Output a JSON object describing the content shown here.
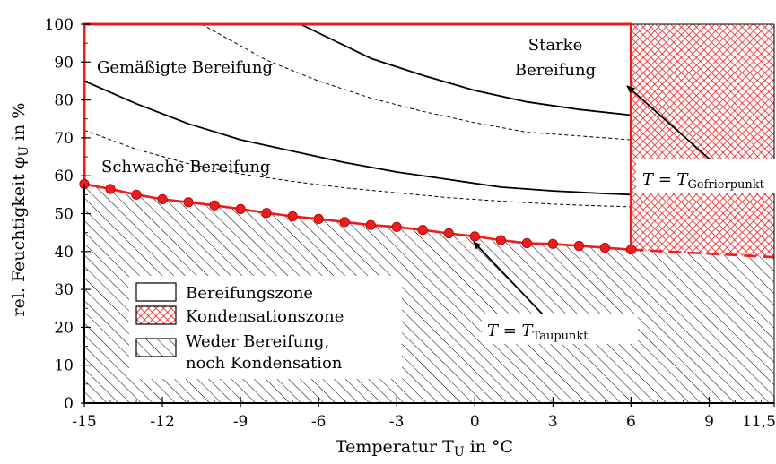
{
  "chart_data": {
    "type": "line",
    "xlabel": "Temperatur T",
    "xlabel_sub": "U",
    "xlabel_unit": " in °C",
    "ylabel": "rel. Feuchtigkeit φ",
    "ylabel_sub": "U",
    "ylabel_unit": " in %",
    "xlim": [
      -15,
      11.5
    ],
    "ylim": [
      0,
      100
    ],
    "xticks": [
      -15,
      -12,
      -9,
      -6,
      -3,
      0,
      3,
      6,
      9,
      11.5
    ],
    "xtick_labels": [
      "-15",
      "-12",
      "-9",
      "-6",
      "-3",
      "0",
      "3",
      "6",
      "9",
      "11,5"
    ],
    "yticks": [
      0,
      10,
      20,
      30,
      40,
      50,
      60,
      70,
      80,
      90,
      100
    ],
    "ytick_labels": [
      "0",
      "10",
      "20",
      "30",
      "40",
      "50",
      "60",
      "70",
      "80",
      "90",
      "100"
    ],
    "dewpoint_points": {
      "x": [
        -15,
        -14,
        -13,
        -12,
        -11,
        -10,
        -9,
        -8,
        -7,
        -6,
        -5,
        -4,
        -3,
        -2,
        -1,
        0,
        1,
        2,
        3,
        4,
        5,
        6
      ],
      "y": [
        57.8,
        56.5,
        55.0,
        53.8,
        53.0,
        52.2,
        51.2,
        50.2,
        49.3,
        48.6,
        47.8,
        47.0,
        46.5,
        45.7,
        44.8,
        44.0,
        43.0,
        42.2,
        42.0,
        41.5,
        41.0,
        40.5
      ]
    },
    "dewpoint_extension": {
      "x": [
        6,
        11.5
      ],
      "y": [
        40.5,
        38.5
      ]
    },
    "freezing_x": 6,
    "solid_curves": [
      {
        "x": [
          -6.7,
          -4,
          -2,
          0,
          2,
          4,
          6
        ],
        "y": [
          100,
          91,
          86.5,
          82.5,
          79.5,
          77.5,
          76
        ]
      },
      {
        "x": [
          -15,
          -13,
          -11,
          -9,
          -7,
          -5,
          -3,
          -1,
          1,
          3,
          5,
          6
        ],
        "y": [
          85,
          79,
          73.7,
          69.5,
          66.5,
          63.5,
          61,
          59,
          57,
          56,
          55.3,
          55
        ]
      }
    ],
    "dashed_curves": [
      {
        "x": [
          -10.5,
          -8,
          -6,
          -4,
          -2,
          0,
          2,
          4,
          6
        ],
        "y": [
          100,
          90.5,
          85,
          80.5,
          77,
          74,
          71.5,
          70.5,
          69.5
        ]
      },
      {
        "x": [
          -15,
          -13,
          -11,
          -9,
          -7,
          -5,
          -3,
          -1,
          1,
          3,
          5,
          6
        ],
        "y": [
          72,
          67,
          63.2,
          60.5,
          58.5,
          56.8,
          55.5,
          54.2,
          53.3,
          52.5,
          52.0,
          51.8
        ]
      }
    ],
    "zone_labels": {
      "moderate": "Gemäßigte Bereifung",
      "weak": "Schwache Bereifung",
      "strong_line1": "Starke",
      "strong_line2": "Bereifung"
    },
    "annotations": {
      "freezing_main": "T = T",
      "freezing_sub": "Gefrierpunkt",
      "dewpoint_main": "T = T",
      "dewpoint_sub": "Taupunkt"
    },
    "legend": {
      "items": [
        "Bereifungszone",
        "Kondensationszone",
        "Weder Bereifung,",
        "noch Kondensation"
      ]
    },
    "colors": {
      "red": "#ee1c1c",
      "black": "#000000"
    }
  }
}
